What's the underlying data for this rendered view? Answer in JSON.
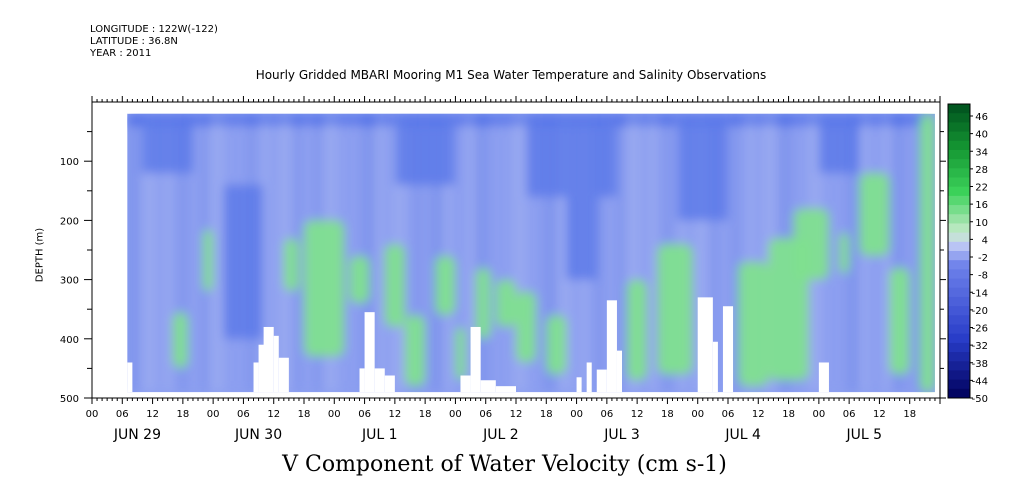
{
  "header": {
    "longitude": "LONGITUDE : 122W(-122)",
    "latitude": "LATITUDE : 36.8N",
    "year": "YEAR : 2011"
  },
  "title": "Hourly Gridded MBARI Mooring M1 Sea Water Temperature and Salinity Observations",
  "variable_label": "V Component of Water Velocity (cm s-1)",
  "chart_data": {
    "type": "heatmap",
    "ylabel": "DEPTH (m)",
    "y_inverted": true,
    "ylim": [
      0,
      500
    ],
    "y_ticks": [
      100,
      200,
      300,
      400,
      500
    ],
    "y_tick_labels": [
      "100",
      "200",
      "300",
      "400",
      "500"
    ],
    "x_hour_labels": [
      "00",
      "06",
      "12",
      "18",
      "00",
      "06",
      "12",
      "18",
      "00",
      "06",
      "12",
      "18",
      "00",
      "06",
      "12",
      "18",
      "00",
      "06",
      "12",
      "18",
      "00",
      "06",
      "12",
      "18",
      "00",
      "06",
      "12",
      "18"
    ],
    "x_day_labels": [
      "JUN 29",
      "JUN 30",
      "JUL  1",
      "JUL  2",
      "JUL  3",
      "JUL  4",
      "JUL  5"
    ],
    "x_range_hours": [
      0,
      168
    ],
    "data_x_range_hours": [
      7,
      167
    ],
    "data_depth_range": [
      20,
      490
    ],
    "colorbar": {
      "levels": [
        "46",
        "40",
        "34",
        "28",
        "22",
        "16",
        "10",
        "4",
        "-2",
        "-8",
        "-14",
        "-20",
        "-26",
        "-32",
        "-38",
        "-44",
        "-50"
      ],
      "range": [
        -50,
        46
      ]
    },
    "missing_regions": [
      {
        "x_hours": [
          7,
          8
        ],
        "depth": [
          440,
          490
        ]
      },
      {
        "x_hours": [
          32,
          33
        ],
        "depth": [
          440,
          490
        ]
      },
      {
        "x_hours": [
          33,
          35
        ],
        "depth": [
          410,
          490
        ]
      },
      {
        "x_hours": [
          34,
          36
        ],
        "depth": [
          380,
          490
        ]
      },
      {
        "x_hours": [
          36,
          37
        ],
        "depth": [
          395,
          490
        ]
      },
      {
        "x_hours": [
          37,
          39
        ],
        "depth": [
          432,
          490
        ]
      },
      {
        "x_hours": [
          53,
          54
        ],
        "depth": [
          450,
          490
        ]
      },
      {
        "x_hours": [
          54,
          56
        ],
        "depth": [
          355,
          490
        ]
      },
      {
        "x_hours": [
          56,
          58
        ],
        "depth": [
          450,
          490
        ]
      },
      {
        "x_hours": [
          58,
          60
        ],
        "depth": [
          462,
          490
        ]
      },
      {
        "x_hours": [
          73,
          75
        ],
        "depth": [
          462,
          490
        ]
      },
      {
        "x_hours": [
          75,
          77
        ],
        "depth": [
          380,
          490
        ]
      },
      {
        "x_hours": [
          77,
          80
        ],
        "depth": [
          470,
          490
        ]
      },
      {
        "x_hours": [
          80,
          84
        ],
        "depth": [
          480,
          490
        ]
      },
      {
        "x_hours": [
          96,
          97
        ],
        "depth": [
          465,
          490
        ]
      },
      {
        "x_hours": [
          98,
          99
        ],
        "depth": [
          440,
          490
        ]
      },
      {
        "x_hours": [
          100,
          102
        ],
        "depth": [
          452,
          490
        ]
      },
      {
        "x_hours": [
          102,
          104
        ],
        "depth": [
          335,
          490
        ]
      },
      {
        "x_hours": [
          104,
          105
        ],
        "depth": [
          420,
          490
        ]
      },
      {
        "x_hours": [
          120,
          123
        ],
        "depth": [
          330,
          490
        ]
      },
      {
        "x_hours": [
          123,
          124
        ],
        "depth": [
          405,
          490
        ]
      },
      {
        "x_hours": [
          125,
          127
        ],
        "depth": [
          345,
          490
        ]
      },
      {
        "x_hours": [
          144,
          146
        ],
        "depth": [
          440,
          490
        ]
      }
    ],
    "positive_patches": [
      {
        "x_hours": [
          16,
          19
        ],
        "depth": [
          355,
          450
        ]
      },
      {
        "x_hours": [
          22,
          24
        ],
        "depth": [
          215,
          320
        ]
      },
      {
        "x_hours": [
          38,
          41
        ],
        "depth": [
          230,
          320
        ]
      },
      {
        "x_hours": [
          42,
          50
        ],
        "depth": [
          200,
          430
        ]
      },
      {
        "x_hours": [
          51,
          55
        ],
        "depth": [
          260,
          340
        ]
      },
      {
        "x_hours": [
          58,
          62
        ],
        "depth": [
          240,
          380
        ]
      },
      {
        "x_hours": [
          62,
          66
        ],
        "depth": [
          360,
          480
        ]
      },
      {
        "x_hours": [
          68,
          72
        ],
        "depth": [
          260,
          360
        ]
      },
      {
        "x_hours": [
          72,
          74
        ],
        "depth": [
          380,
          470
        ]
      },
      {
        "x_hours": [
          76,
          79
        ],
        "depth": [
          280,
          400
        ]
      },
      {
        "x_hours": [
          80,
          84
        ],
        "depth": [
          300,
          380
        ]
      },
      {
        "x_hours": [
          84,
          88
        ],
        "depth": [
          320,
          440
        ]
      },
      {
        "x_hours": [
          90,
          94
        ],
        "depth": [
          360,
          460
        ]
      },
      {
        "x_hours": [
          106,
          110
        ],
        "depth": [
          300,
          470
        ]
      },
      {
        "x_hours": [
          112,
          119
        ],
        "depth": [
          240,
          460
        ]
      },
      {
        "x_hours": [
          128,
          134
        ],
        "depth": [
          270,
          480
        ]
      },
      {
        "x_hours": [
          134,
          142
        ],
        "depth": [
          230,
          470
        ]
      },
      {
        "x_hours": [
          139,
          146
        ],
        "depth": [
          180,
          300
        ]
      },
      {
        "x_hours": [
          148,
          150
        ],
        "depth": [
          220,
          290
        ]
      },
      {
        "x_hours": [
          152,
          158
        ],
        "depth": [
          120,
          260
        ]
      },
      {
        "x_hours": [
          158,
          162
        ],
        "depth": [
          280,
          460
        ]
      },
      {
        "x_hours": [
          164,
          167
        ],
        "depth": [
          20,
          490
        ]
      }
    ],
    "negative_bands": [
      {
        "x_hours": [
          10,
          20
        ],
        "depth": [
          20,
          120
        ]
      },
      {
        "x_hours": [
          26,
          34
        ],
        "depth": [
          140,
          400
        ]
      },
      {
        "x_hours": [
          60,
          72
        ],
        "depth": [
          20,
          140
        ]
      },
      {
        "x_hours": [
          86,
          104
        ],
        "depth": [
          20,
          160
        ]
      },
      {
        "x_hours": [
          94,
          100
        ],
        "depth": [
          160,
          300
        ]
      },
      {
        "x_hours": [
          116,
          126
        ],
        "depth": [
          20,
          200
        ]
      },
      {
        "x_hours": [
          144,
          152
        ],
        "depth": [
          20,
          120
        ]
      }
    ]
  }
}
